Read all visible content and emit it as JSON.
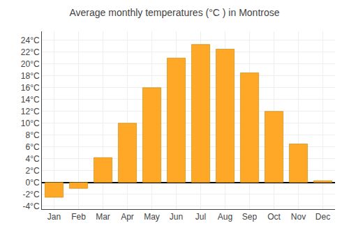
{
  "chart_data": {
    "type": "bar",
    "title": "Average monthly temperatures (°C ) in Montrose",
    "categories": [
      "Jan",
      "Feb",
      "Mar",
      "Apr",
      "May",
      "Jun",
      "Jul",
      "Aug",
      "Sep",
      "Oct",
      "Nov",
      "Dec"
    ],
    "values": [
      -2.5,
      -1.0,
      4.2,
      10.0,
      16.0,
      21.0,
      23.3,
      22.5,
      18.5,
      12.0,
      6.5,
      0.3
    ],
    "color": "#FFA726",
    "ylim": [
      -4.5,
      25.5
    ],
    "yticks": [
      {
        "value": -4,
        "label": "-4°C"
      },
      {
        "value": -2,
        "label": "-2°C"
      },
      {
        "value": 0,
        "label": "0°C"
      },
      {
        "value": 2,
        "label": "2°C"
      },
      {
        "value": 4,
        "label": "4°C"
      },
      {
        "value": 6,
        "label": "6°C"
      },
      {
        "value": 8,
        "label": "8°C"
      },
      {
        "value": 10,
        "label": "10°C"
      },
      {
        "value": 12,
        "label": "12°C"
      },
      {
        "value": 14,
        "label": "14°C"
      },
      {
        "value": 16,
        "label": "16°C"
      },
      {
        "value": 18,
        "label": "18°C"
      },
      {
        "value": 20,
        "label": "20°C"
      },
      {
        "value": 22,
        "label": "22°C"
      },
      {
        "value": 24,
        "label": "24°C"
      }
    ],
    "grid": true
  }
}
